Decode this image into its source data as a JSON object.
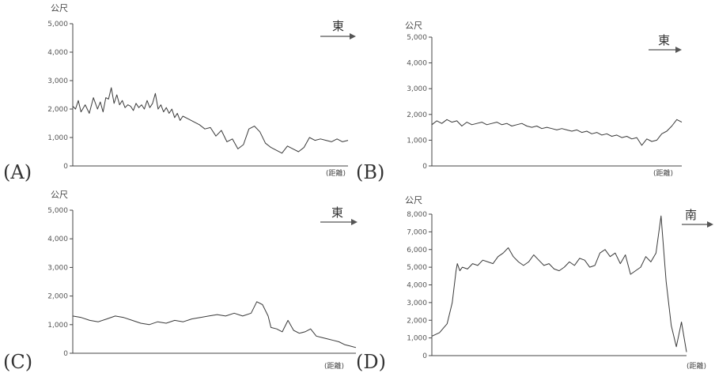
{
  "chart_data": [
    {
      "type": "line",
      "panel_label": "(A)",
      "ylabel": "公尺",
      "xlabel": "(距離)",
      "direction": "東",
      "ylim": [
        0,
        5000
      ],
      "y_ticks": [
        "0",
        "1,000",
        "2,000",
        "3,000",
        "4,000",
        "5,000"
      ],
      "grid": false,
      "series": [
        {
          "x": [
            0,
            0.01,
            0.02,
            0.03,
            0.045,
            0.06,
            0.075,
            0.09,
            0.1,
            0.11,
            0.12,
            0.13,
            0.14,
            0.15,
            0.16,
            0.17,
            0.18,
            0.19,
            0.2,
            0.21,
            0.22,
            0.23,
            0.24,
            0.25,
            0.26,
            0.27,
            0.28,
            0.29,
            0.3,
            0.31,
            0.32,
            0.33,
            0.34,
            0.35,
            0.36,
            0.37,
            0.38,
            0.39,
            0.4,
            0.42,
            0.44,
            0.46,
            0.48,
            0.5,
            0.52,
            0.54,
            0.56,
            0.58,
            0.6,
            0.62,
            0.64,
            0.66,
            0.68,
            0.7,
            0.72,
            0.74,
            0.76,
            0.78,
            0.8,
            0.82,
            0.84,
            0.86,
            0.88,
            0.9,
            0.92,
            0.94,
            0.96,
            0.98,
            1.0
          ],
          "values": [
            2100,
            2000,
            2300,
            1900,
            2150,
            1850,
            2400,
            2000,
            2250,
            1900,
            2400,
            2350,
            2750,
            2200,
            2500,
            2150,
            2300,
            2050,
            2150,
            2100,
            1950,
            2200,
            2050,
            2150,
            2000,
            2300,
            2050,
            2200,
            2550,
            2000,
            2150,
            1900,
            2050,
            1850,
            2000,
            1700,
            1850,
            1600,
            1750,
            1650,
            1550,
            1450,
            1300,
            1350,
            1050,
            1250,
            850,
            950,
            600,
            750,
            1300,
            1400,
            1200,
            800,
            650,
            550,
            450,
            700,
            600,
            500,
            650,
            1000,
            900,
            950,
            900,
            850,
            950,
            850,
            900
          ]
        }
      ]
    },
    {
      "type": "line",
      "panel_label": "(B)",
      "ylabel": "公尺",
      "xlabel": "(距離)",
      "direction": "東",
      "ylim": [
        0,
        5000
      ],
      "y_ticks": [
        "0",
        "1,000",
        "2,000",
        "3,000",
        "4,000",
        "5,000"
      ],
      "grid": false,
      "series": [
        {
          "x": [
            0,
            0.02,
            0.04,
            0.06,
            0.08,
            0.1,
            0.12,
            0.14,
            0.16,
            0.18,
            0.2,
            0.22,
            0.24,
            0.26,
            0.28,
            0.3,
            0.32,
            0.34,
            0.36,
            0.38,
            0.4,
            0.42,
            0.44,
            0.46,
            0.48,
            0.5,
            0.52,
            0.54,
            0.56,
            0.58,
            0.6,
            0.62,
            0.64,
            0.66,
            0.68,
            0.7,
            0.72,
            0.74,
            0.76,
            0.78,
            0.8,
            0.82,
            0.84,
            0.86,
            0.88,
            0.9,
            0.92,
            0.94,
            0.96,
            0.98,
            1.0
          ],
          "values": [
            1600,
            1750,
            1650,
            1800,
            1700,
            1750,
            1550,
            1700,
            1600,
            1650,
            1700,
            1600,
            1650,
            1700,
            1600,
            1650,
            1550,
            1600,
            1650,
            1550,
            1500,
            1550,
            1450,
            1500,
            1450,
            1400,
            1450,
            1400,
            1350,
            1400,
            1300,
            1350,
            1250,
            1300,
            1200,
            1250,
            1150,
            1200,
            1100,
            1150,
            1050,
            1100,
            800,
            1050,
            950,
            1000,
            1250,
            1350,
            1550,
            1800,
            1700
          ]
        }
      ]
    },
    {
      "type": "line",
      "panel_label": "(C)",
      "ylabel": "公尺",
      "xlabel": "(距離)",
      "direction": "東",
      "ylim": [
        0,
        5000
      ],
      "y_ticks": [
        "0",
        "1,000",
        "2,000",
        "3,000",
        "4,000",
        "5,000"
      ],
      "grid": false,
      "series": [
        {
          "x": [
            0,
            0.03,
            0.06,
            0.09,
            0.12,
            0.15,
            0.18,
            0.21,
            0.24,
            0.27,
            0.3,
            0.33,
            0.36,
            0.39,
            0.42,
            0.45,
            0.48,
            0.51,
            0.54,
            0.57,
            0.6,
            0.63,
            0.65,
            0.67,
            0.69,
            0.7,
            0.72,
            0.74,
            0.76,
            0.78,
            0.8,
            0.82,
            0.84,
            0.86,
            0.88,
            0.9,
            0.92,
            0.94,
            0.96,
            0.98,
            1.0
          ],
          "values": [
            1300,
            1250,
            1150,
            1100,
            1200,
            1300,
            1250,
            1150,
            1050,
            1000,
            1100,
            1050,
            1150,
            1100,
            1200,
            1250,
            1300,
            1350,
            1300,
            1400,
            1300,
            1400,
            1800,
            1700,
            1300,
            900,
            850,
            750,
            1150,
            800,
            700,
            750,
            850,
            600,
            550,
            500,
            450,
            400,
            300,
            250,
            200
          ]
        }
      ]
    },
    {
      "type": "line",
      "panel_label": "(D)",
      "ylabel": "公尺",
      "xlabel": "(距離)",
      "direction": "南",
      "ylim": [
        0,
        8000
      ],
      "y_ticks": [
        "0",
        "1,000",
        "2,000",
        "3,000",
        "4,000",
        "5,000",
        "6,000",
        "7,000",
        "8,000"
      ],
      "grid": false,
      "series": [
        {
          "x": [
            0,
            0.03,
            0.06,
            0.08,
            0.095,
            0.1,
            0.11,
            0.12,
            0.14,
            0.16,
            0.18,
            0.2,
            0.22,
            0.24,
            0.26,
            0.28,
            0.3,
            0.32,
            0.34,
            0.36,
            0.38,
            0.4,
            0.42,
            0.44,
            0.46,
            0.48,
            0.5,
            0.52,
            0.54,
            0.56,
            0.58,
            0.6,
            0.62,
            0.64,
            0.66,
            0.68,
            0.7,
            0.72,
            0.74,
            0.76,
            0.78,
            0.8,
            0.82,
            0.84,
            0.86,
            0.88,
            0.9,
            0.92,
            0.94,
            0.96,
            0.98,
            1.0
          ],
          "values": [
            1100,
            1300,
            1800,
            3000,
            4800,
            5200,
            4800,
            5000,
            4900,
            5200,
            5100,
            5400,
            5300,
            5200,
            5600,
            5800,
            6100,
            5600,
            5300,
            5100,
            5300,
            5700,
            5400,
            5100,
            5200,
            4900,
            4800,
            5000,
            5300,
            5100,
            5500,
            5400,
            5000,
            5100,
            5800,
            6000,
            5600,
            5800,
            5200,
            5700,
            4600,
            4800,
            5000,
            5600,
            5300,
            5800,
            7900,
            4200,
            1700,
            500,
            1900,
            200
          ]
        }
      ]
    }
  ]
}
